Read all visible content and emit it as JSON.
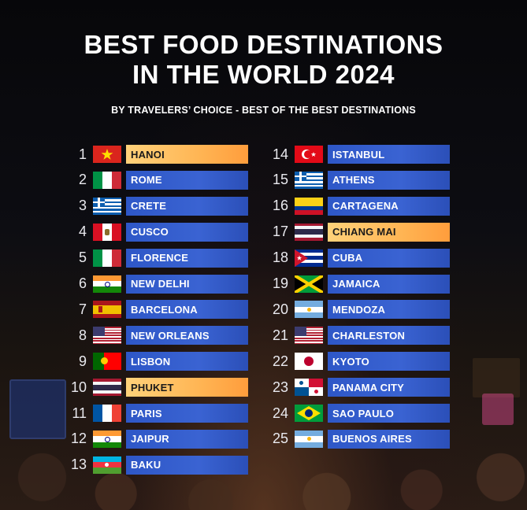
{
  "title_line1": "BEST FOOD DESTINATIONS",
  "title_line2": "IN THE WORLD 2024",
  "subtitle": "BY TRAVELERS’ CHOICE - BEST OF THE BEST DESTINATIONS",
  "left": [
    {
      "rank": "1",
      "name": "HANOI",
      "flag": "vietnam",
      "highlight": true
    },
    {
      "rank": "2",
      "name": "ROME",
      "flag": "italy",
      "highlight": false
    },
    {
      "rank": "3",
      "name": "CRETE",
      "flag": "greece",
      "highlight": false
    },
    {
      "rank": "4",
      "name": "CUSCO",
      "flag": "peru",
      "highlight": false
    },
    {
      "rank": "5",
      "name": "FLORENCE",
      "flag": "italy",
      "highlight": false
    },
    {
      "rank": "6",
      "name": "NEW DELHI",
      "flag": "india",
      "highlight": false
    },
    {
      "rank": "7",
      "name": "BARCELONA",
      "flag": "spain",
      "highlight": false
    },
    {
      "rank": "8",
      "name": "NEW ORLEANS",
      "flag": "usa",
      "highlight": false
    },
    {
      "rank": "9",
      "name": "LISBON",
      "flag": "portugal",
      "highlight": false
    },
    {
      "rank": "10",
      "name": "PHUKET",
      "flag": "thailand",
      "highlight": true
    },
    {
      "rank": "11",
      "name": "PARIS",
      "flag": "france",
      "highlight": false
    },
    {
      "rank": "12",
      "name": "JAIPUR",
      "flag": "india",
      "highlight": false
    },
    {
      "rank": "13",
      "name": "BAKU",
      "flag": "azerbaijan",
      "highlight": false
    }
  ],
  "right": [
    {
      "rank": "14",
      "name": "ISTANBUL",
      "flag": "turkey",
      "highlight": false
    },
    {
      "rank": "15",
      "name": "ATHENS",
      "flag": "greece",
      "highlight": false
    },
    {
      "rank": "16",
      "name": "CARTAGENA",
      "flag": "colombia",
      "highlight": false
    },
    {
      "rank": "17",
      "name": "CHIANG MAI",
      "flag": "thailand",
      "highlight": true
    },
    {
      "rank": "18",
      "name": "CUBA",
      "flag": "cuba",
      "highlight": false
    },
    {
      "rank": "19",
      "name": "JAMAICA",
      "flag": "jamaica",
      "highlight": false
    },
    {
      "rank": "20",
      "name": "MENDOZA",
      "flag": "argentina",
      "highlight": false
    },
    {
      "rank": "21",
      "name": "CHARLESTON",
      "flag": "usa",
      "highlight": false
    },
    {
      "rank": "22",
      "name": "KYOTO",
      "flag": "japan",
      "highlight": false
    },
    {
      "rank": "23",
      "name": "PANAMA CITY",
      "flag": "panama",
      "highlight": false
    },
    {
      "rank": "24",
      "name": "SAO PAULO",
      "flag": "brazil",
      "highlight": false
    },
    {
      "rank": "25",
      "name": "BUENOS AIRES",
      "flag": "argentina",
      "highlight": false
    }
  ],
  "colors": {
    "bar_blue": "#3a63d2",
    "bar_highlight": "#ffb554"
  }
}
